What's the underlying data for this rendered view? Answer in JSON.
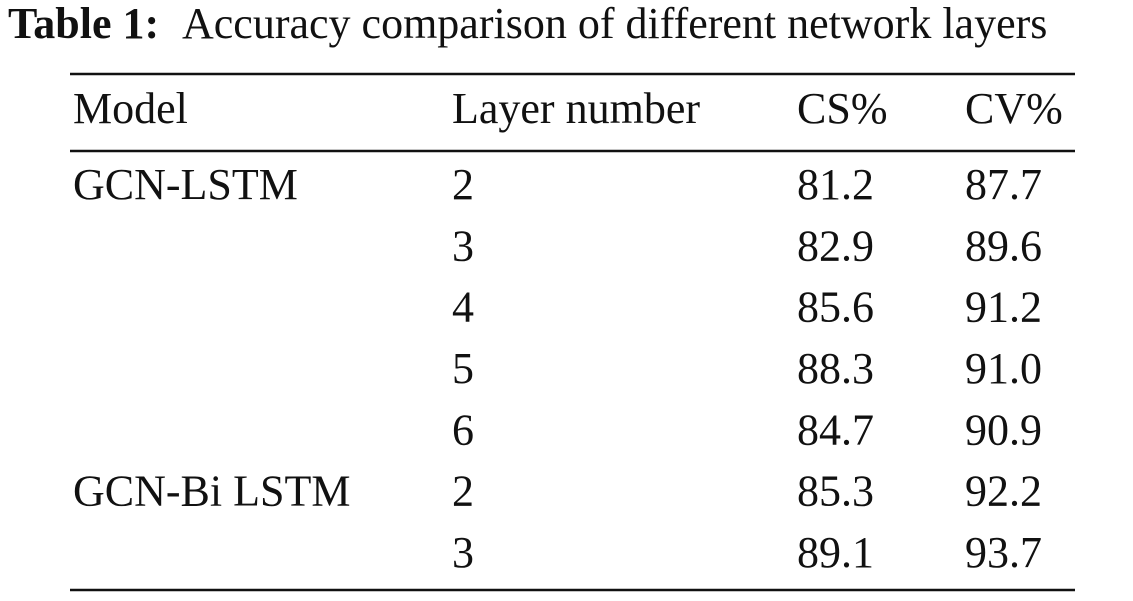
{
  "caption": {
    "label": "Table 1:",
    "text": "Accuracy comparison of different network layers"
  },
  "table": {
    "header": [
      "Model",
      "Layer number",
      "CS%",
      "CV%"
    ],
    "groups": [
      {
        "model": "GCN-LSTM",
        "rows": [
          [
            "2",
            "81.2",
            "87.7"
          ],
          [
            "3",
            "82.9",
            "89.6"
          ],
          [
            "4",
            "85.6",
            "91.2"
          ],
          [
            "5",
            "88.3",
            "91.0"
          ],
          [
            "6",
            "84.7",
            "90.9"
          ]
        ]
      },
      {
        "model": "GCN-Bi LSTM",
        "rows": [
          [
            "2",
            "85.3",
            "92.2"
          ],
          [
            "3",
            "89.1",
            "93.7"
          ]
        ]
      }
    ]
  }
}
